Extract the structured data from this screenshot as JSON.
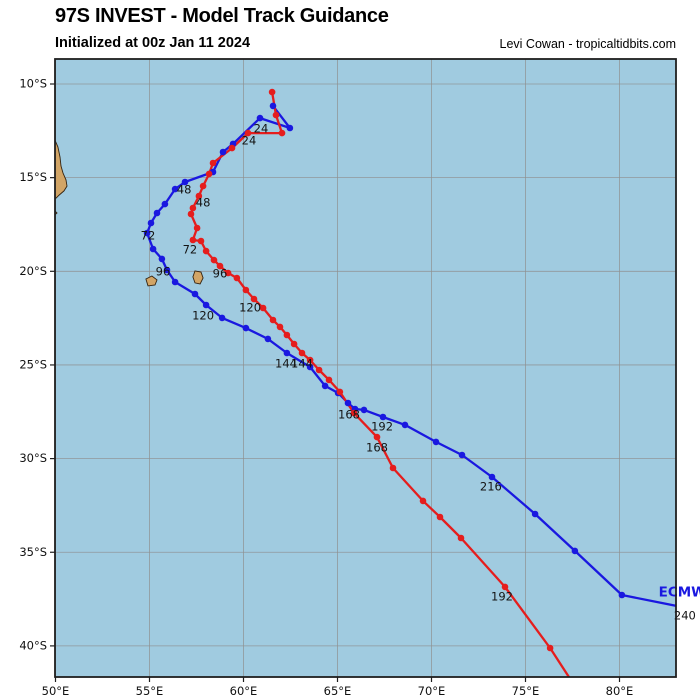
{
  "chart_data": {
    "type": "line",
    "title": "97S INVEST - Model Track Guidance",
    "subtitle": "Initialized at 00z Jan 11 2024",
    "credit": "Levi Cowan - tropicaltidbits.com",
    "grid": true,
    "lon_range": [
      50,
      83.0
    ],
    "lat_range_south": [
      8.7,
      41.7
    ],
    "x_ticks": [
      {
        "label": "50°E",
        "lon": 50
      },
      {
        "label": "55°E",
        "lon": 55
      },
      {
        "label": "60°E",
        "lon": 60
      },
      {
        "label": "65°E",
        "lon": 65
      },
      {
        "label": "70°E",
        "lon": 70
      },
      {
        "label": "75°E",
        "lon": 75
      },
      {
        "label": "80°E",
        "lon": 80
      }
    ],
    "y_ticks": [
      {
        "label": "10°S",
        "lat": 10
      },
      {
        "label": "15°S",
        "lat": 15
      },
      {
        "label": "20°S",
        "lat": 20
      },
      {
        "label": "25°S",
        "lat": 25
      },
      {
        "label": "30°S",
        "lat": 30
      },
      {
        "label": "35°S",
        "lat": 35
      },
      {
        "label": "40°S",
        "lat": 40
      }
    ],
    "series": [
      {
        "id": "ecmwf",
        "name": "ECMWF",
        "color": "#1a18e0",
        "points": [
          [
            61.57,
            11.17
          ],
          [
            62.47,
            12.35
          ],
          [
            60.88,
            11.82
          ],
          [
            59.44,
            13.2
          ],
          [
            58.91,
            13.63
          ],
          [
            58.38,
            14.7
          ],
          [
            56.89,
            15.23
          ],
          [
            56.36,
            15.61
          ],
          [
            55.82,
            16.41
          ],
          [
            55.4,
            16.89
          ],
          [
            55.08,
            17.42
          ],
          [
            54.87,
            17.96
          ],
          [
            55.19,
            18.81
          ],
          [
            55.66,
            19.34
          ],
          [
            55.93,
            19.93
          ],
          [
            56.36,
            20.57
          ],
          [
            57.42,
            21.21
          ],
          [
            58.01,
            21.8
          ],
          [
            58.86,
            22.49
          ],
          [
            60.13,
            23.03
          ],
          [
            61.3,
            23.61
          ],
          [
            62.31,
            24.36
          ],
          [
            63.54,
            25.11
          ],
          [
            64.34,
            26.12
          ],
          [
            65.03,
            26.5
          ],
          [
            65.56,
            27.03
          ],
          [
            65.93,
            27.35
          ],
          [
            66.41,
            27.4
          ],
          [
            67.42,
            27.78
          ],
          [
            68.59,
            28.2
          ],
          [
            70.24,
            29.11
          ],
          [
            71.62,
            29.81
          ],
          [
            73.22,
            30.98
          ],
          [
            75.51,
            32.96
          ],
          [
            77.63,
            34.93
          ],
          [
            80.13,
            37.28
          ],
          [
            83.2,
            37.9
          ]
        ],
        "hour_labels": [
          {
            "h": "24",
            "lon": 60.93,
            "lat": 12.4
          },
          {
            "h": "48",
            "lon": 56.84,
            "lat": 15.66
          },
          {
            "h": "72",
            "lon": 54.92,
            "lat": 18.12
          },
          {
            "h": "96",
            "lon": 55.72,
            "lat": 20.04
          },
          {
            "h": "120",
            "lon": 57.85,
            "lat": 22.39
          },
          {
            "h": "144",
            "lon": 62.26,
            "lat": 24.95
          },
          {
            "h": "168",
            "lon": 65.61,
            "lat": 27.67
          },
          {
            "h": "192",
            "lon": 67.37,
            "lat": 28.31
          },
          {
            "h": "216",
            "lon": 73.16,
            "lat": 31.51
          },
          {
            "h": "240",
            "lon": 83.48,
            "lat": 38.4
          }
        ],
        "end_label": {
          "text": "ECMWF",
          "lon": 82.08,
          "lat": 37.15
        }
      },
      {
        "id": "red-model",
        "name": "",
        "color": "#e51d1d",
        "points": [
          [
            61.52,
            10.43
          ],
          [
            61.73,
            11.66
          ],
          [
            62.05,
            12.62
          ],
          [
            60.24,
            12.62
          ],
          [
            59.39,
            13.42
          ],
          [
            58.38,
            14.22
          ],
          [
            58.17,
            14.8
          ],
          [
            57.85,
            15.45
          ],
          [
            57.63,
            15.98
          ],
          [
            57.31,
            16.62
          ],
          [
            57.21,
            16.94
          ],
          [
            57.53,
            17.69
          ],
          [
            57.31,
            18.33
          ],
          [
            57.74,
            18.38
          ],
          [
            58.01,
            18.92
          ],
          [
            58.43,
            19.4
          ],
          [
            58.75,
            19.72
          ],
          [
            59.18,
            20.09
          ],
          [
            59.65,
            20.36
          ],
          [
            60.13,
            21.0
          ],
          [
            60.56,
            21.48
          ],
          [
            61.04,
            21.96
          ],
          [
            61.57,
            22.6
          ],
          [
            61.94,
            22.97
          ],
          [
            62.31,
            23.4
          ],
          [
            62.69,
            23.88
          ],
          [
            63.11,
            24.36
          ],
          [
            63.54,
            24.74
          ],
          [
            64.02,
            25.27
          ],
          [
            64.55,
            25.8
          ],
          [
            65.13,
            26.44
          ],
          [
            65.88,
            27.57
          ],
          [
            67.1,
            28.85
          ],
          [
            67.95,
            30.5
          ],
          [
            69.55,
            32.26
          ],
          [
            70.45,
            33.12
          ],
          [
            71.57,
            34.24
          ],
          [
            73.91,
            36.85
          ],
          [
            76.31,
            40.11
          ],
          [
            77.4,
            41.8
          ]
        ],
        "hour_labels": [
          {
            "h": "24",
            "lon": 60.29,
            "lat": 13.04
          },
          {
            "h": "48",
            "lon": 57.85,
            "lat": 16.35
          },
          {
            "h": "72",
            "lon": 57.15,
            "lat": 18.86
          },
          {
            "h": "96",
            "lon": 58.75,
            "lat": 20.14
          },
          {
            "h": "120",
            "lon": 60.35,
            "lat": 21.96
          },
          {
            "h": "144",
            "lon": 63.11,
            "lat": 24.95
          },
          {
            "h": "168",
            "lon": 67.1,
            "lat": 29.43
          },
          {
            "h": "192",
            "lon": 73.75,
            "lat": 37.39
          }
        ]
      }
    ]
  },
  "map": {
    "ocean_color": "#a0cbe0",
    "land_color": "#d2a566",
    "land_outline": "#33220f",
    "grid_color": "#8f8f8f",
    "border_color": "#1f1f1f",
    "label_color": "#141414",
    "land": [
      {
        "name": "madagascar-coast",
        "pts": [
          [
            49.78,
            12.9
          ],
          [
            49.97,
            12.99
          ],
          [
            50.13,
            13.36
          ],
          [
            50.24,
            13.9
          ],
          [
            50.29,
            14.38
          ],
          [
            50.4,
            14.75
          ],
          [
            50.56,
            15.12
          ],
          [
            50.61,
            15.45
          ],
          [
            50.45,
            15.71
          ],
          [
            50.19,
            15.93
          ],
          [
            50.03,
            16.09
          ],
          [
            49.78,
            16.18
          ]
        ]
      },
      {
        "name": "coast-sliver",
        "pts": [
          [
            49.76,
            16.57
          ],
          [
            50.08,
            16.89
          ],
          [
            49.97,
            16.99
          ],
          [
            49.71,
            16.67
          ]
        ]
      },
      {
        "name": "island-reunion",
        "pts": [
          [
            54.81,
            20.41
          ],
          [
            55.13,
            20.25
          ],
          [
            55.4,
            20.46
          ],
          [
            55.29,
            20.73
          ],
          [
            54.92,
            20.78
          ]
        ]
      },
      {
        "name": "island-mauritius",
        "pts": [
          [
            57.42,
            19.98
          ],
          [
            57.74,
            20.04
          ],
          [
            57.85,
            20.36
          ],
          [
            57.69,
            20.68
          ],
          [
            57.42,
            20.62
          ],
          [
            57.31,
            20.3
          ]
        ]
      }
    ]
  }
}
